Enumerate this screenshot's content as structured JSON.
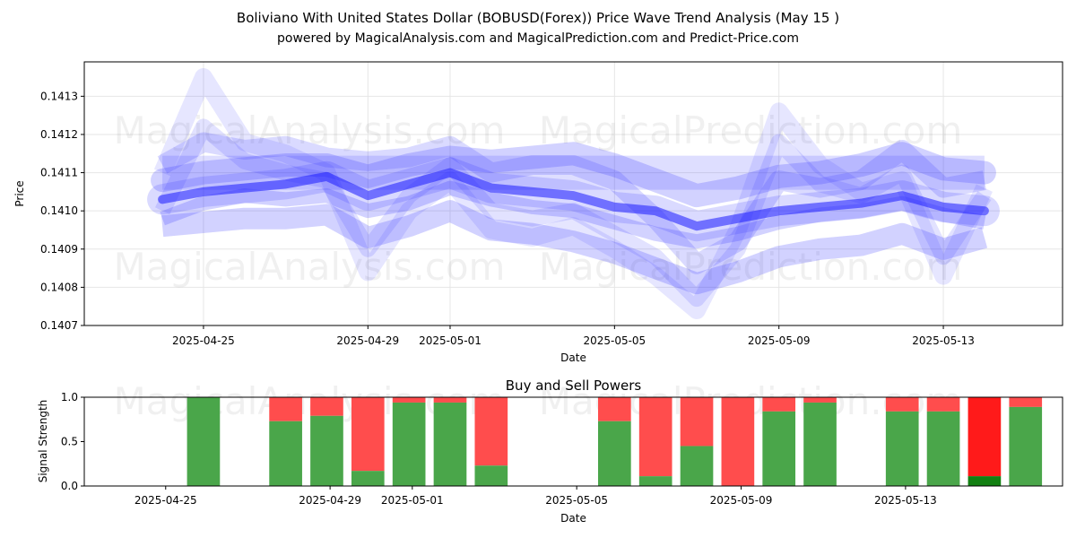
{
  "title_line1": "Boliviano With United States Dollar (BOBUSD(Forex)) Price Wave Trend Analysis (May 15 )",
  "title_line2": "powered by MagicalAnalysis.com and MagicalPrediction.com and Predict-Price.com",
  "watermarks": [
    "MagicalAnalysis.com",
    "MagicalPrediction.com"
  ],
  "chart_data": [
    {
      "type": "line",
      "title": "",
      "xlabel": "Date",
      "ylabel": "Price",
      "ylim": [
        0.1407,
        0.14139
      ],
      "yticks": [
        "0.1407",
        "0.1408",
        "0.1409",
        "0.1410",
        "0.1411",
        "0.1412",
        "0.1413"
      ],
      "ytick_values": [
        0.1407,
        0.1408,
        0.1409,
        0.141,
        0.1411,
        0.1412,
        0.1413
      ],
      "xticks": [
        "2025-04-25",
        "2025-04-29",
        "2025-05-01",
        "2025-05-05",
        "2025-05-09",
        "2025-05-13"
      ],
      "xtick_days": [
        2,
        6,
        8,
        12,
        16,
        20
      ],
      "x_range_days": [
        -0.9,
        22.9
      ],
      "dates": [
        "2025-04-24",
        "2025-04-25",
        "2025-04-26",
        "2025-04-27",
        "2025-04-28",
        "2025-04-29",
        "2025-04-30",
        "2025-05-01",
        "2025-05-02",
        "2025-05-03",
        "2025-05-04",
        "2025-05-05",
        "2025-05-06",
        "2025-05-07",
        "2025-05-08",
        "2025-05-09",
        "2025-05-10",
        "2025-05-11",
        "2025-05-12",
        "2025-05-13",
        "2025-05-14"
      ],
      "series": [
        {
          "name": "wave-main",
          "values": [
            0.14103,
            0.14105,
            0.14106,
            0.14107,
            0.14109,
            0.14104,
            0.14107,
            0.1411,
            0.14106,
            0.14105,
            0.14104,
            0.14101,
            0.141,
            0.14096,
            0.14098,
            0.141,
            0.14101,
            0.14102,
            0.14104,
            0.14101,
            0.141
          ]
        },
        {
          "name": "wave-upper",
          "values": [
            0.14108,
            0.1411,
            0.14111,
            0.14112,
            0.14112,
            0.14109,
            0.14112,
            0.14114,
            0.14113,
            0.14114,
            0.14115,
            0.14112,
            0.14108,
            0.14104,
            0.14106,
            0.14109,
            0.1411,
            0.14112,
            0.14115,
            0.14111,
            0.1411
          ]
        },
        {
          "name": "wave-lower",
          "values": [
            0.14096,
            0.14097,
            0.14098,
            0.14098,
            0.14099,
            0.14093,
            0.14096,
            0.141,
            0.14095,
            0.14094,
            0.14092,
            0.14089,
            0.14085,
            0.14081,
            0.14084,
            0.14088,
            0.1409,
            0.14091,
            0.14094,
            0.1409,
            0.14093
          ]
        },
        {
          "name": "wave-swing-1",
          "values": [
            0.1411,
            0.14135,
            0.14118,
            0.14115,
            0.1411,
            0.14084,
            0.141,
            0.14108,
            0.14095,
            0.14093,
            0.14096,
            0.1409,
            0.14083,
            0.14074,
            0.14095,
            0.14126,
            0.14112,
            0.14105,
            0.14108,
            0.14083,
            0.14106
          ]
        },
        {
          "name": "wave-swing-2",
          "values": [
            0.141,
            0.14122,
            0.14113,
            0.1411,
            0.14108,
            0.1409,
            0.14104,
            0.14112,
            0.141,
            0.14098,
            0.141,
            0.14094,
            0.14088,
            0.14077,
            0.1409,
            0.14118,
            0.14107,
            0.14104,
            0.1411,
            0.14088,
            0.14104
          ]
        },
        {
          "name": "wave-swing-3",
          "values": [
            0.14112,
            0.14118,
            0.14116,
            0.14117,
            0.14114,
            0.14113,
            0.14114,
            0.14117,
            0.1411,
            0.14112,
            0.14112,
            0.14108,
            0.14098,
            0.14086,
            0.14092,
            0.14108,
            0.14106,
            0.14108,
            0.14116,
            0.14106,
            0.14108
          ]
        },
        {
          "name": "wave-swing-4",
          "values": [
            0.14098,
            0.14102,
            0.14104,
            0.14103,
            0.14104,
            0.141,
            0.14102,
            0.14106,
            0.14103,
            0.14101,
            0.141,
            0.14097,
            0.14094,
            0.14092,
            0.14094,
            0.14097,
            0.14099,
            0.141,
            0.14102,
            0.14099,
            0.14097
          ]
        },
        {
          "name": "wave-flat",
          "values": [
            0.1411,
            0.1411,
            0.1411,
            0.1411,
            0.1411,
            0.1411,
            0.1411,
            0.1411,
            0.1411,
            0.1411,
            0.1411,
            0.1411,
            0.1411,
            0.1411,
            0.1411,
            0.1411,
            0.1411,
            0.1411,
            0.1411,
            0.1411,
            0.1411
          ]
        }
      ]
    },
    {
      "type": "bar",
      "title": "Buy and Sell Powers",
      "xlabel": "Date",
      "ylabel": "Signal Strength",
      "ylim": [
        0,
        1
      ],
      "yticks": [
        "0.0",
        "0.5",
        "1.0"
      ],
      "ytick_values": [
        0,
        0.5,
        1.0
      ],
      "xticks": [
        "2025-04-25",
        "2025-04-29",
        "2025-05-01",
        "2025-05-05",
        "2025-05-09",
        "2025-05-13"
      ],
      "xtick_days": [
        2,
        6,
        8,
        12,
        16,
        20
      ],
      "x_range_days": [
        -0.9,
        22.9
      ],
      "bar_width_days": 0.8,
      "colors": {
        "buy": "#4aa64a",
        "sell": "#ff4d4d",
        "buy_strong": "#128012",
        "sell_strong": "#ff1a1a"
      },
      "bars": [
        {
          "date": "2025-04-25",
          "day": 2,
          "buy": 1.0
        },
        {
          "date": "2025-04-27",
          "day": 4,
          "buy": 0.73
        },
        {
          "date": "2025-04-28",
          "day": 5,
          "buy": 0.79
        },
        {
          "date": "2025-04-29",
          "day": 6,
          "buy": 0.17
        },
        {
          "date": "2025-04-30",
          "day": 7,
          "buy": 0.94
        },
        {
          "date": "2025-05-01",
          "day": 8,
          "buy": 0.94
        },
        {
          "date": "2025-05-02",
          "day": 9,
          "buy": 0.23
        },
        {
          "date": "2025-05-05",
          "day": 12,
          "buy": 0.73
        },
        {
          "date": "2025-05-06",
          "day": 13,
          "buy": 0.11
        },
        {
          "date": "2025-05-07",
          "day": 14,
          "buy": 0.45
        },
        {
          "date": "2025-05-08",
          "day": 15,
          "buy": 0.0
        },
        {
          "date": "2025-05-09",
          "day": 16,
          "buy": 0.84
        },
        {
          "date": "2025-05-10",
          "day": 17,
          "buy": 0.94
        },
        {
          "date": "2025-05-12",
          "day": 19,
          "buy": 0.84
        },
        {
          "date": "2025-05-13",
          "day": 20,
          "buy": 0.84
        },
        {
          "date": "2025-05-14",
          "day": 21,
          "buy": 0.11,
          "strong": true
        },
        {
          "date": "2025-05-15",
          "day": 22,
          "buy": 0.89
        }
      ]
    }
  ]
}
